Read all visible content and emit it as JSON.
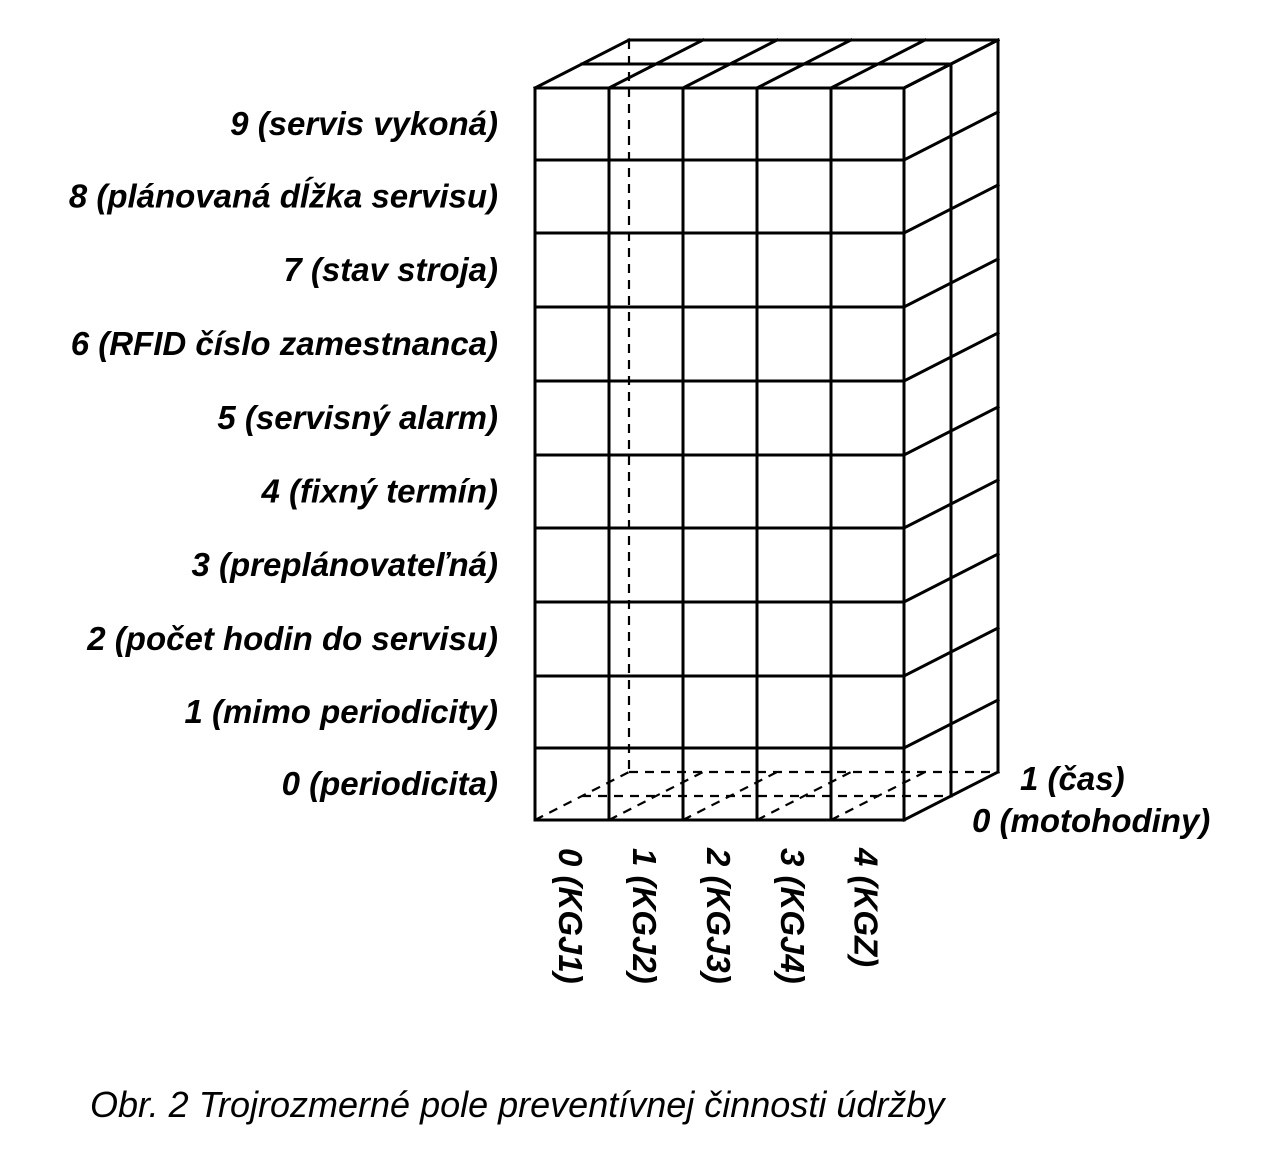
{
  "diagram": {
    "row_labels": [
      "9 (servis vykoná)",
      "8 (plánovaná dĺžka servisu)",
      "7 (stav stroja)",
      "6 (RFID číslo zamestnanca)",
      "5 (servisný alarm)",
      "4 (fixný termín)",
      "3 (preplánovateľná)",
      "2 (počet hodin do servisu)",
      "1 (mimo periodicity)",
      "0 (periodicita)"
    ],
    "column_labels": [
      "0 (KGJ1)",
      "1 (KGJ2)",
      "2 (KGJ3)",
      "3 (KGJ4)",
      "4 (KGZ)"
    ],
    "depth_labels": [
      "1 (čas)",
      "0 (motohodiny)"
    ],
    "caption": "Obr. 2 Trojrozmerné pole preventívnej činnosti údržby"
  }
}
